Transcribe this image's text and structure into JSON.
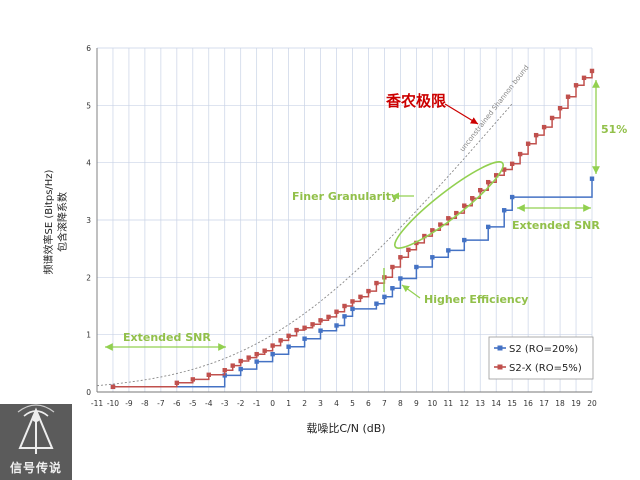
{
  "chart_data": {
    "type": "line",
    "xlabel": "载噪比C/N (dB)",
    "ylabel_line1": "频谱效率SE (Bitps/Hz)",
    "ylabel_line2": "包含滚降系数",
    "xlim": [
      -11,
      20
    ],
    "ylim": [
      0,
      6
    ],
    "x_ticks": [
      -11,
      -10,
      -9,
      -8,
      -7,
      -6,
      -5,
      -4,
      -3,
      -2,
      -1,
      0,
      1,
      2,
      3,
      4,
      5,
      6,
      7,
      8,
      9,
      10,
      11,
      12,
      13,
      14,
      15,
      16,
      17,
      18,
      19,
      20
    ],
    "y_ticks": [
      0,
      1,
      2,
      3,
      4,
      5,
      6
    ],
    "grid": true,
    "legend_position": "bottom-right",
    "colors": {
      "s2": "#4472c4",
      "s2x": "#c0504d",
      "annotation": "#92d050",
      "shannon": "#888888",
      "title_red": "#cc0000"
    },
    "series": [
      {
        "name": "S2 (RO=20%)",
        "style": "step",
        "x": [
          -10,
          -3,
          -2,
          -1,
          0,
          1,
          2,
          3,
          4,
          4.5,
          5.0,
          6.5,
          7.0,
          7.5,
          8.0,
          9.0,
          10.0,
          11.0,
          12.0,
          13.5,
          14.5,
          15.0,
          20.0
        ],
        "y": [
          0.09,
          0.29,
          0.4,
          0.53,
          0.66,
          0.79,
          0.93,
          1.07,
          1.16,
          1.32,
          1.45,
          1.54,
          1.66,
          1.81,
          1.98,
          2.18,
          2.35,
          2.47,
          2.65,
          2.88,
          3.17,
          3.4,
          3.72
        ]
      },
      {
        "name": "S2-X (RO=5%)",
        "style": "step",
        "x": [
          -10,
          -6,
          -5,
          -4,
          -3,
          -2.5,
          -2,
          -1.5,
          -1,
          -0.5,
          0,
          0.5,
          1,
          1.5,
          2,
          2.5,
          3,
          3.5,
          4,
          4.5,
          5,
          5.5,
          6,
          6.5,
          7,
          7.5,
          8,
          8.5,
          9,
          9.5,
          10,
          10.5,
          11,
          11.5,
          12,
          12.5,
          13,
          13.5,
          14,
          14.5,
          15,
          15.5,
          16,
          16.5,
          17,
          17.5,
          18,
          18.5,
          19,
          19.5,
          20
        ],
        "y": [
          0.09,
          0.16,
          0.22,
          0.3,
          0.38,
          0.46,
          0.54,
          0.6,
          0.66,
          0.72,
          0.81,
          0.9,
          0.98,
          1.08,
          1.12,
          1.18,
          1.25,
          1.31,
          1.4,
          1.5,
          1.58,
          1.66,
          1.76,
          1.9,
          2.0,
          2.18,
          2.35,
          2.48,
          2.6,
          2.72,
          2.82,
          2.92,
          3.03,
          3.12,
          3.25,
          3.38,
          3.52,
          3.66,
          3.78,
          3.88,
          3.98,
          4.15,
          4.33,
          4.48,
          4.62,
          4.78,
          4.95,
          5.15,
          5.35,
          5.48,
          5.6
        ]
      }
    ],
    "shannon_label": "unconstrained Shannon bound",
    "annotations": {
      "shannon_limit": "香农极限",
      "finer_granularity": "Finer Granularity",
      "higher_efficiency": "Higher Efficiency",
      "extended_snr_left": "Extended SNR",
      "extended_snr_right": "Extended SNR",
      "gain_51": "51%"
    }
  },
  "logo": {
    "text": "信号传说"
  }
}
